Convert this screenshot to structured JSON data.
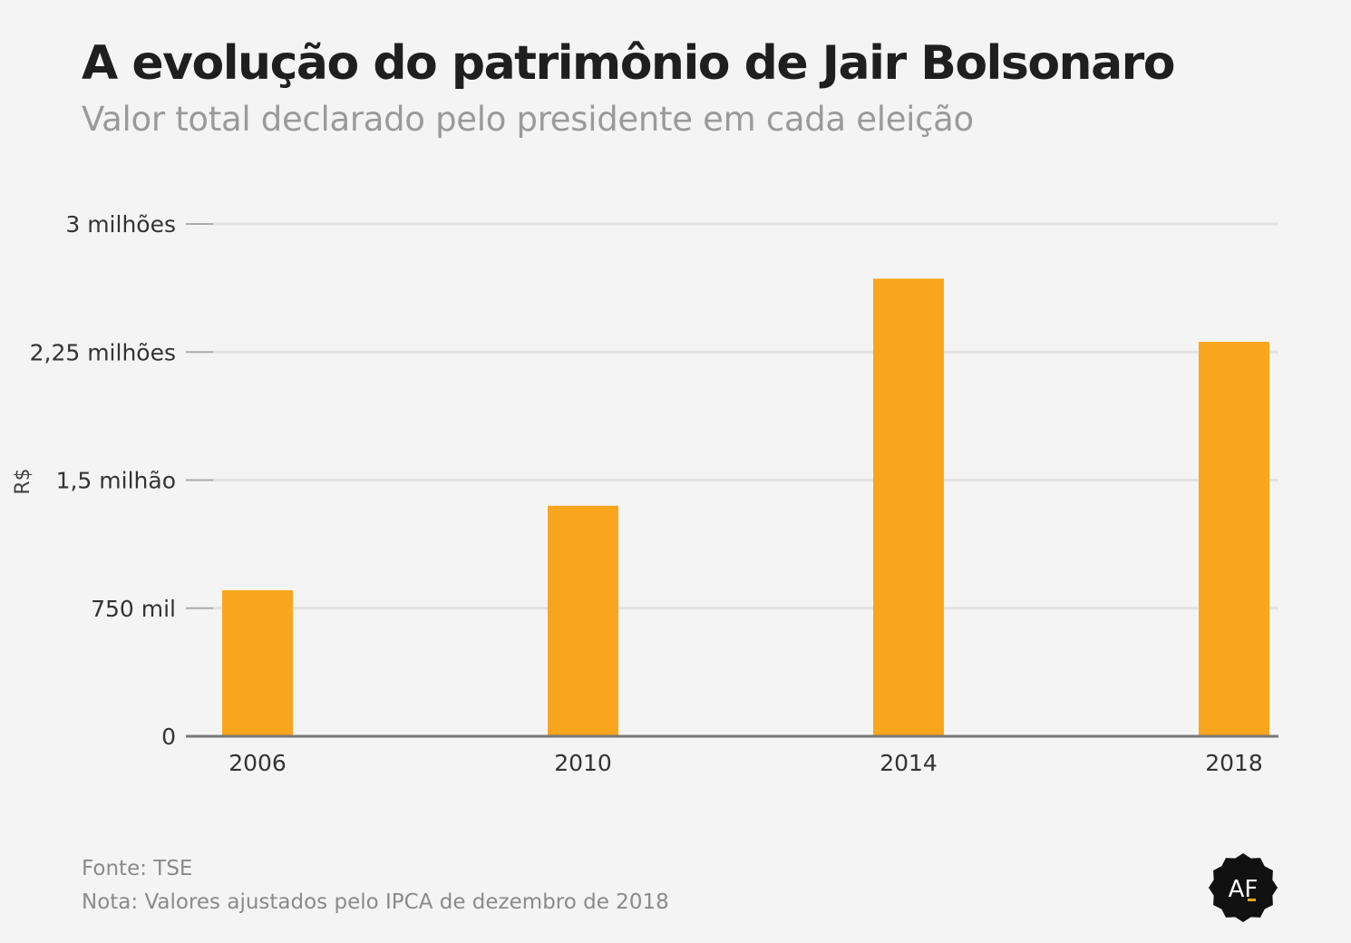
{
  "header": {
    "title": "A evolução do patrimônio de Jair Bolsonaro",
    "subtitle": "Valor total declarado pelo presidente em cada eleição"
  },
  "footer": {
    "source": "Fonte: TSE",
    "note": "Nota: Valores ajustados pelo IPCA de dezembro de 2018"
  },
  "logo": {
    "text": "AF",
    "icon": "af-seal-logo"
  },
  "colors": {
    "bar": "#f9a61d",
    "background": "#f4f4f4",
    "grid": "#e2e2e2",
    "axis": "#777777",
    "text": "#333333",
    "logo": "#111111"
  },
  "chart_data": {
    "type": "bar",
    "title": "A evolução do patrimônio de Jair Bolsonaro",
    "subtitle": "Valor total declarado pelo presidente em cada eleição",
    "xlabel": "",
    "ylabel": "R$",
    "categories": [
      "2006",
      "2010",
      "2014",
      "2018"
    ],
    "values": [
      855000,
      1350000,
      2680000,
      2310000
    ],
    "ylim": [
      0,
      3000000
    ],
    "yticks": [
      0,
      750000,
      1500000,
      2250000,
      3000000
    ],
    "ytick_labels": [
      "0",
      "750 mil",
      "1,5 milhão",
      "2,25 milhões",
      "3 milhões"
    ],
    "grid": true,
    "legend": "none"
  }
}
